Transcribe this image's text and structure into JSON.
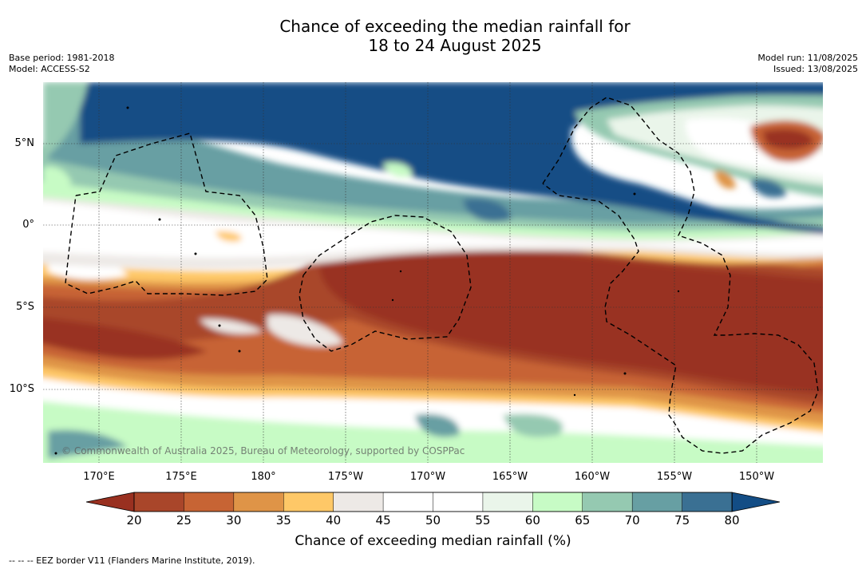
{
  "title_line1": "Chance of exceeding the median rainfall for",
  "title_line2": "18 to 24 August 2025",
  "left_meta": {
    "base_period": "Base period: 1981-2018",
    "model": "Model: ACCESS-S2"
  },
  "right_meta": {
    "model_run": "Model run: 11/08/2025",
    "issued": "Issued: 13/08/2025"
  },
  "lat_labels": [
    "5°N",
    "0°",
    "5°S",
    "10°S"
  ],
  "lon_labels": [
    "170°E",
    "175°E",
    "180°",
    "175°W",
    "170°W",
    "165°W",
    "160°W",
    "155°W",
    "150°W"
  ],
  "colorbar": {
    "ticks": [
      "20",
      "25",
      "30",
      "35",
      "40",
      "45",
      "50",
      "55",
      "60",
      "65",
      "70",
      "75",
      "80"
    ],
    "colors": [
      "#993020",
      "#a9462a",
      "#c76434",
      "#df9447",
      "#fec867",
      "#ede9e6",
      "#ffffff",
      "#ffffff",
      "#eaf5ea",
      "#c7fbc5",
      "#95c9b1",
      "#679fa3",
      "#3a7093",
      "#134d85"
    ],
    "title": "Chance of exceeding median rainfall (%)"
  },
  "attribution": "© Commonwealth of Australia 2025, Bureau of Meteorology, supported by COSPPac",
  "footnote": "-- -- -- EEZ border V11 (Flanders Marine Institute, 2019)."
}
